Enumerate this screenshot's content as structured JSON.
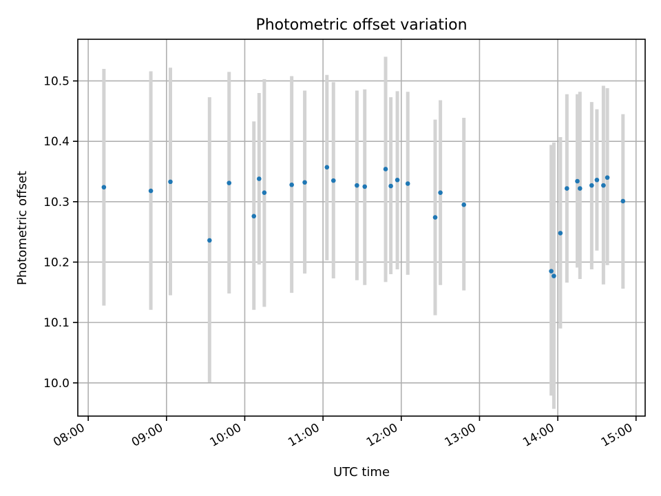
{
  "chart_data": {
    "type": "scatter",
    "title": "Photometric offset variation",
    "xlabel": "UTC time",
    "ylabel": "Photometric offset",
    "x_tick_labels": [
      "08:00",
      "09:00",
      "10:00",
      "11:00",
      "12:00",
      "13:00",
      "14:00",
      "15:00"
    ],
    "y_tick_labels": [
      "10.0",
      "10.1",
      "10.2",
      "10.3",
      "10.4",
      "10.5"
    ],
    "xlim": [
      "07:52",
      "15:07"
    ],
    "ylim": [
      9.945,
      10.569
    ],
    "grid": true,
    "marker_color": "#1f77b4",
    "errorbar_color": "#d3d3d3",
    "series": [
      {
        "x": [
          "08:12",
          "08:48",
          "09:03",
          "09:33",
          "09:48",
          "10:07",
          "10:11",
          "10:15",
          "10:36",
          "10:46",
          "11:03",
          "11:08",
          "11:26",
          "11:32",
          "11:48",
          "11:52",
          "11:57",
          "12:05",
          "12:26",
          "12:30",
          "12:48",
          "13:55",
          "13:57",
          "14:02",
          "14:07",
          "14:15",
          "14:17",
          "14:26",
          "14:30",
          "14:35",
          "14:38",
          "14:50"
        ],
        "y": [
          10.324,
          10.318,
          10.333,
          10.236,
          10.331,
          10.276,
          10.338,
          10.315,
          10.328,
          10.332,
          10.357,
          10.335,
          10.327,
          10.325,
          10.354,
          10.326,
          10.336,
          10.33,
          10.274,
          10.315,
          10.295,
          10.185,
          10.177,
          10.248,
          10.322,
          10.334,
          10.322,
          10.327,
          10.336,
          10.327,
          10.34,
          10.301
        ],
        "err_low": [
          10.128,
          10.121,
          10.145,
          10.001,
          10.148,
          10.121,
          10.196,
          10.126,
          10.149,
          10.181,
          10.203,
          10.173,
          10.17,
          10.162,
          10.167,
          10.18,
          10.188,
          10.179,
          10.112,
          10.162,
          10.153,
          9.979,
          9.957,
          10.09,
          10.166,
          10.191,
          10.172,
          10.188,
          10.219,
          10.163,
          10.195,
          10.156
        ],
        "err_high": [
          10.52,
          10.516,
          10.522,
          10.473,
          10.515,
          10.433,
          10.48,
          10.503,
          10.508,
          10.484,
          10.51,
          10.498,
          10.484,
          10.486,
          10.54,
          10.473,
          10.483,
          10.482,
          10.436,
          10.468,
          10.439,
          10.394,
          10.398,
          10.407,
          10.478,
          10.478,
          10.482,
          10.465,
          10.453,
          10.492,
          10.488,
          10.445
        ]
      }
    ]
  }
}
